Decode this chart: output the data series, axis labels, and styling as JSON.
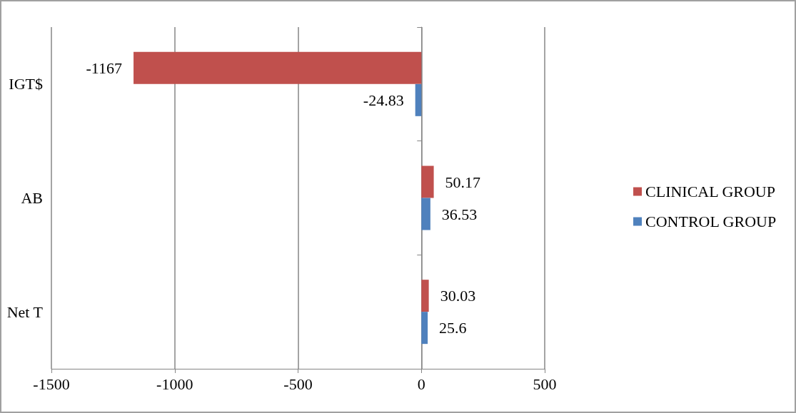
{
  "chart_data": {
    "type": "bar",
    "orientation": "horizontal",
    "categories": [
      "IGT$",
      "AB",
      "Net T"
    ],
    "series": [
      {
        "name": "CLINICAL GROUP",
        "color": "#c0504d",
        "values": [
          -1167,
          50.17,
          30.03
        ]
      },
      {
        "name": "CONTROL GROUP",
        "color": "#4f81bd",
        "values": [
          -24.83,
          36.53,
          25.6
        ]
      }
    ],
    "xlim": [
      -1500,
      500
    ],
    "xticks": [
      -1500,
      -1000,
      -500,
      0,
      500
    ],
    "grid": "x",
    "legend": "right",
    "data_labels": true
  }
}
